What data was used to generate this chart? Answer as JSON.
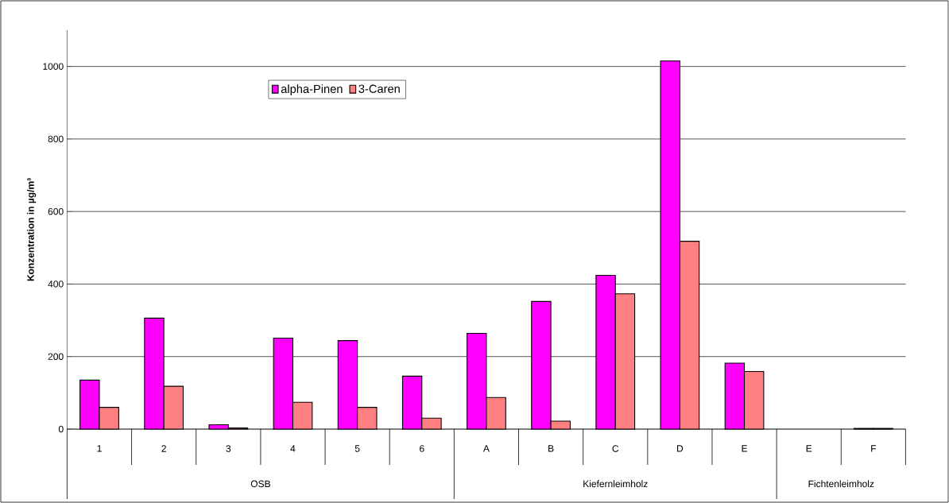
{
  "chart_data": {
    "type": "bar",
    "ylabel": "Konzentration in µg/m³",
    "categories": [
      "1",
      "2",
      "3",
      "4",
      "5",
      "6",
      "A",
      "B",
      "C",
      "D",
      "E",
      "E",
      "F"
    ],
    "series": [
      {
        "name": "alpha-Pinen",
        "color": "#ff00ff",
        "values": [
          135,
          306,
          12,
          251,
          244,
          146,
          264,
          352,
          424,
          1015,
          182,
          null,
          2
        ]
      },
      {
        "name": "3-Caren",
        "color": "#ff8080",
        "values": [
          60,
          118,
          3,
          74,
          60,
          30,
          87,
          22,
          373,
          518,
          159,
          null,
          2
        ]
      }
    ],
    "annotations": [
      "OSB",
      "Kiefernleimholz",
      "Fichtenleimholz"
    ],
    "ylim": [
      0,
      1100
    ],
    "yticks": [
      0,
      200,
      400,
      600,
      800,
      1000
    ],
    "grid": "y",
    "legend": "top left"
  }
}
